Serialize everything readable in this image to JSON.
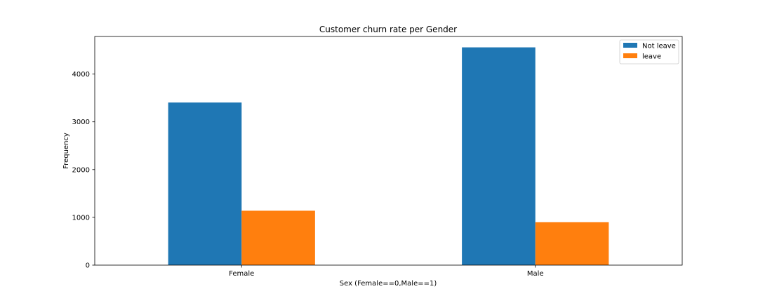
{
  "chart_data": {
    "type": "bar",
    "title": "Customer churn rate per Gender",
    "xlabel": "Sex (Female==0,Male==1)",
    "ylabel": "Frequency",
    "categories": [
      "Female",
      "Male"
    ],
    "series": [
      {
        "name": "Not leave",
        "values": [
          3404,
          4559
        ],
        "color": "#1f77b4"
      },
      {
        "name": "leave",
        "values": [
          1139,
          898
        ],
        "color": "#ff7f0e"
      }
    ],
    "ylim": [
      0,
      4787
    ],
    "yticks": [
      0,
      1000,
      2000,
      3000,
      4000
    ],
    "grid": false,
    "legend_position": "top-right"
  }
}
